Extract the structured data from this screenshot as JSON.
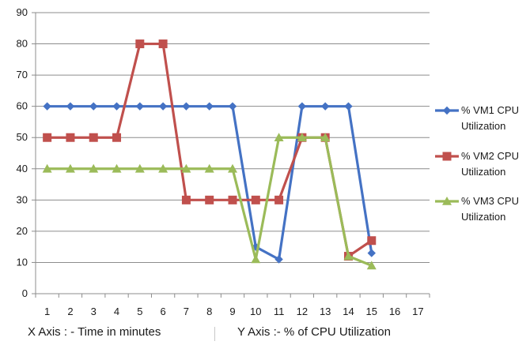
{
  "chart_data": {
    "type": "line",
    "x": [
      1,
      2,
      3,
      4,
      5,
      6,
      7,
      8,
      9,
      10,
      11,
      12,
      13,
      14,
      15
    ],
    "x_ticks": [
      1,
      2,
      3,
      4,
      5,
      6,
      7,
      8,
      9,
      10,
      11,
      12,
      13,
      14,
      15,
      16,
      17
    ],
    "y_ticks": [
      0,
      10,
      20,
      30,
      40,
      50,
      60,
      70,
      80,
      90
    ],
    "ylim": [
      0,
      90
    ],
    "grid": "horizontal",
    "legend_position": "right",
    "series": [
      {
        "name_lines": [
          "% VM1 CPU",
          "Utilization"
        ],
        "color": "#4472C4",
        "marker": "diamond",
        "values": [
          60,
          60,
          60,
          60,
          60,
          60,
          60,
          60,
          60,
          15,
          11,
          60,
          60,
          60,
          13
        ]
      },
      {
        "name_lines": [
          "% VM2 CPU",
          "Utilization"
        ],
        "color": "#C0504D",
        "marker": "square",
        "values": [
          50,
          50,
          50,
          50,
          80,
          80,
          30,
          30,
          30,
          30,
          30,
          50,
          50,
          12,
          17
        ]
      },
      {
        "name_lines": [
          "% VM3 CPU",
          "Utilization"
        ],
        "color": "#9BBB59",
        "marker": "triangle",
        "values": [
          40,
          40,
          40,
          40,
          40,
          40,
          40,
          40,
          40,
          11,
          50,
          50,
          50,
          12,
          9
        ]
      }
    ]
  },
  "captions": {
    "x_axis": "X Axis : - Time in minutes",
    "y_axis": "Y Axis :- % of CPU Utilization"
  }
}
